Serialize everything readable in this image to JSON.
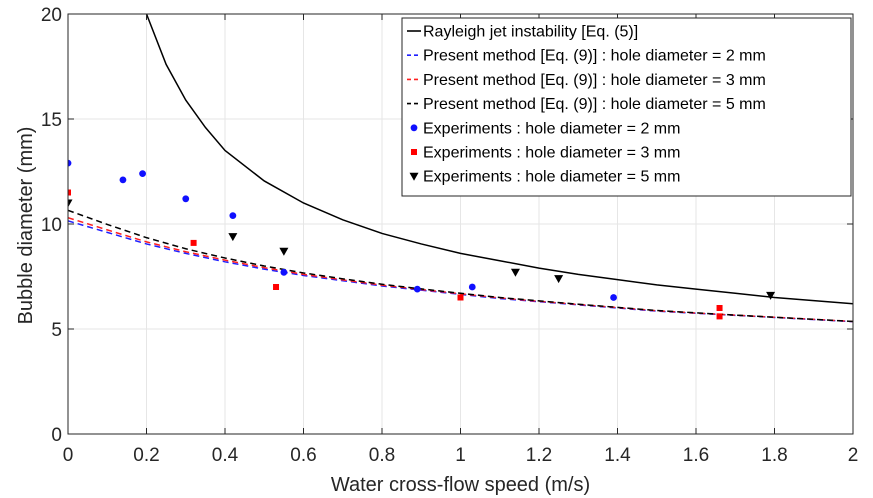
{
  "chart_data": {
    "type": "line",
    "title": "",
    "xlabel": "Water cross-flow speed (m/s)",
    "ylabel": "Bubble diameter (mm)",
    "xlim": [
      0,
      2
    ],
    "ylim": [
      0,
      20
    ],
    "xticks": [
      0,
      0.2,
      0.4,
      0.6,
      0.8,
      1,
      1.2,
      1.4,
      1.6,
      1.8,
      2
    ],
    "xtick_labels": [
      "0",
      "0.2",
      "0.4",
      "0.6",
      "0.8",
      "1",
      "1.2",
      "1.4",
      "1.6",
      "1.8",
      "2"
    ],
    "yticks": [
      0,
      5,
      10,
      15,
      20
    ],
    "ytick_labels": [
      "0",
      "5",
      "10",
      "15",
      "20"
    ],
    "grid": true,
    "legend_position": "top-right",
    "series": [
      {
        "name": "Rayleigh jet instability [Eq. (5)]",
        "kind": "line",
        "style": "solid",
        "color": "#000000",
        "x": [
          0.2,
          0.25,
          0.3,
          0.35,
          0.4,
          0.5,
          0.6,
          0.7,
          0.8,
          0.9,
          1.0,
          1.1,
          1.2,
          1.3,
          1.4,
          1.5,
          1.6,
          1.7,
          1.8,
          1.9,
          2.0
        ],
        "y": [
          20.0,
          17.6,
          15.9,
          14.6,
          13.5,
          12.05,
          11.0,
          10.2,
          9.55,
          9.05,
          8.6,
          8.25,
          7.9,
          7.6,
          7.35,
          7.1,
          6.9,
          6.7,
          6.5,
          6.35,
          6.2
        ]
      },
      {
        "name": "Present method [Eq. (9)] : hole diameter = 2 mm",
        "kind": "line",
        "style": "dashed",
        "color": "#1f1fff",
        "x": [
          0,
          0.1,
          0.2,
          0.3,
          0.4,
          0.5,
          0.6,
          0.7,
          0.8,
          0.9,
          1.0,
          1.1,
          1.2,
          1.3,
          1.4,
          1.5,
          1.6,
          1.7,
          1.8,
          1.9,
          2.0
        ],
        "y": [
          10.15,
          9.6,
          9.05,
          8.6,
          8.2,
          7.85,
          7.55,
          7.3,
          7.05,
          6.85,
          6.65,
          6.45,
          6.3,
          6.15,
          6.0,
          5.85,
          5.75,
          5.65,
          5.55,
          5.45,
          5.35
        ]
      },
      {
        "name": "Present method [Eq. (9)] : hole diameter = 3 mm",
        "kind": "line",
        "style": "dashed",
        "color": "#ff1f1f",
        "x": [
          0,
          0.1,
          0.2,
          0.3,
          0.4,
          0.5,
          0.6,
          0.7,
          0.8,
          0.9,
          1.0,
          1.1,
          1.2,
          1.3,
          1.4,
          1.5,
          1.6,
          1.7,
          1.8,
          1.9,
          2.0
        ],
        "y": [
          10.3,
          9.72,
          9.15,
          8.68,
          8.28,
          7.92,
          7.6,
          7.34,
          7.09,
          6.88,
          6.68,
          6.48,
          6.32,
          6.17,
          6.02,
          5.87,
          5.76,
          5.66,
          5.56,
          5.46,
          5.36
        ]
      },
      {
        "name": "Present method [Eq. (9)] : hole diameter = 5 mm",
        "kind": "line",
        "style": "dashed",
        "color": "#000000",
        "x": [
          0,
          0.1,
          0.2,
          0.3,
          0.4,
          0.5,
          0.6,
          0.7,
          0.8,
          0.9,
          1.0,
          1.1,
          1.2,
          1.3,
          1.4,
          1.5,
          1.6,
          1.7,
          1.8,
          1.9,
          2.0
        ],
        "y": [
          10.65,
          9.98,
          9.35,
          8.82,
          8.38,
          8.0,
          7.67,
          7.39,
          7.13,
          6.91,
          6.7,
          6.5,
          6.34,
          6.18,
          6.03,
          5.88,
          5.77,
          5.66,
          5.56,
          5.46,
          5.36
        ]
      },
      {
        "name": "Experiments : hole diameter = 2 mm",
        "kind": "scatter",
        "marker": "circle",
        "color": "#1010ff",
        "x": [
          0.0,
          0.14,
          0.19,
          0.3,
          0.42,
          0.55,
          0.89,
          1.03,
          1.39
        ],
        "y": [
          12.9,
          12.1,
          12.4,
          11.2,
          10.4,
          7.7,
          6.9,
          7.0,
          6.5
        ]
      },
      {
        "name": "Experiments : hole diameter = 3 mm",
        "kind": "scatter",
        "marker": "square",
        "color": "#ff0000",
        "x": [
          0.0,
          0.32,
          0.53,
          1.0,
          1.66,
          1.66
        ],
        "y": [
          11.5,
          9.1,
          7.0,
          6.5,
          6.0,
          5.6
        ]
      },
      {
        "name": "Experiments : hole diameter = 5 mm",
        "kind": "scatter",
        "marker": "triangle-down",
        "color": "#000000",
        "x": [
          0.0,
          0.42,
          0.55,
          1.14,
          1.25,
          1.79
        ],
        "y": [
          11.0,
          9.4,
          8.7,
          7.7,
          7.4,
          6.6
        ]
      }
    ]
  }
}
